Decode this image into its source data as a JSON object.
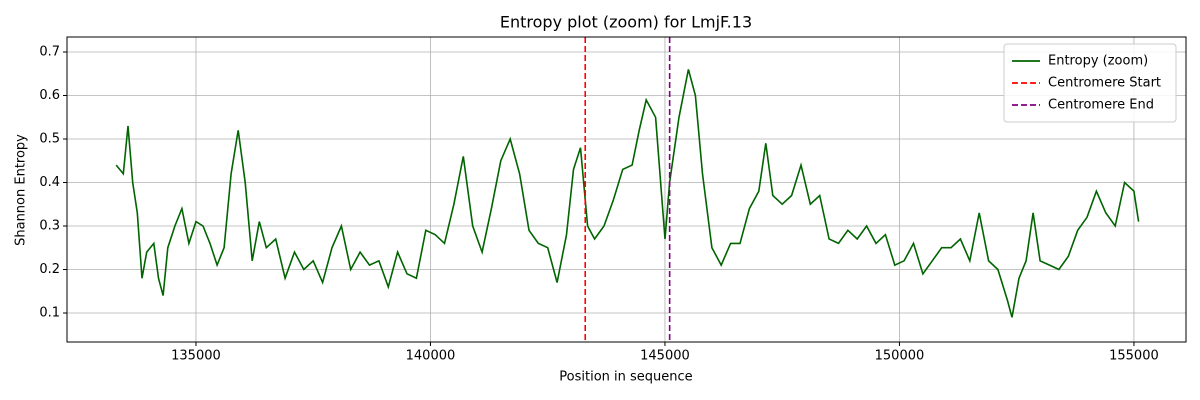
{
  "chart_data": {
    "type": "line",
    "title": "Entropy plot (zoom) for LmjF.13",
    "xlabel": "Position in sequence",
    "ylabel": "Shannon Entropy",
    "x": [
      133300,
      133450,
      133550,
      133650,
      133750,
      133850,
      133950,
      134100,
      134200,
      134300,
      134400,
      134550,
      134700,
      134850,
      135000,
      135150,
      135300,
      135450,
      135600,
      135750,
      135900,
      136050,
      136200,
      136350,
      136500,
      136700,
      136900,
      137100,
      137300,
      137500,
      137700,
      137900,
      138100,
      138300,
      138500,
      138700,
      138900,
      139100,
      139300,
      139500,
      139700,
      139900,
      140100,
      140300,
      140500,
      140700,
      140900,
      141100,
      141300,
      141500,
      141700,
      141900,
      142100,
      142300,
      142500,
      142700,
      142900,
      143050,
      143200,
      143350,
      143500,
      143700,
      143900,
      144100,
      144300,
      144450,
      144600,
      144800,
      145000,
      145100,
      145300,
      145500,
      145650,
      145800,
      146000,
      146200,
      146400,
      146600,
      146800,
      147000,
      147150,
      147300,
      147500,
      147700,
      147900,
      148100,
      148300,
      148500,
      148700,
      148900,
      149100,
      149300,
      149500,
      149700,
      149900,
      150100,
      150300,
      150500,
      150700,
      150900,
      151100,
      151300,
      151500,
      151700,
      151900,
      152100,
      152300,
      152400,
      152550,
      152700,
      152850,
      153000,
      153200,
      153400,
      153600,
      153800,
      154000,
      154200,
      154400,
      154600,
      154800,
      155000,
      155100
    ],
    "series": [
      {
        "name": "Entropy (zoom)",
        "color": "#006400",
        "values": [
          0.44,
          0.42,
          0.53,
          0.4,
          0.33,
          0.18,
          0.24,
          0.26,
          0.18,
          0.14,
          0.25,
          0.3,
          0.34,
          0.26,
          0.31,
          0.3,
          0.26,
          0.21,
          0.25,
          0.42,
          0.52,
          0.4,
          0.22,
          0.31,
          0.25,
          0.27,
          0.18,
          0.24,
          0.2,
          0.22,
          0.17,
          0.25,
          0.3,
          0.2,
          0.24,
          0.21,
          0.22,
          0.16,
          0.24,
          0.19,
          0.18,
          0.29,
          0.28,
          0.26,
          0.35,
          0.46,
          0.3,
          0.24,
          0.34,
          0.45,
          0.5,
          0.42,
          0.29,
          0.26,
          0.25,
          0.17,
          0.28,
          0.43,
          0.48,
          0.3,
          0.27,
          0.3,
          0.36,
          0.43,
          0.44,
          0.52,
          0.59,
          0.55,
          0.27,
          0.4,
          0.55,
          0.66,
          0.6,
          0.42,
          0.25,
          0.21,
          0.26,
          0.26,
          0.34,
          0.38,
          0.49,
          0.37,
          0.35,
          0.37,
          0.44,
          0.35,
          0.37,
          0.27,
          0.26,
          0.29,
          0.27,
          0.3,
          0.26,
          0.28,
          0.21,
          0.22,
          0.26,
          0.19,
          0.22,
          0.25,
          0.25,
          0.27,
          0.22,
          0.33,
          0.22,
          0.2,
          0.13,
          0.09,
          0.18,
          0.22,
          0.33,
          0.22,
          0.21,
          0.2,
          0.23,
          0.29,
          0.32,
          0.38,
          0.33,
          0.3,
          0.4,
          0.38,
          0.31
        ]
      }
    ],
    "vlines": [
      {
        "name": "Centromere Start",
        "color": "red",
        "x": 143300
      },
      {
        "name": "Centromere End",
        "color": "purple",
        "x": 145100
      }
    ],
    "xlim": [
      132250,
      156110
    ],
    "ylim": [
      0.0333,
      0.7345
    ],
    "xticks": [
      135000,
      140000,
      145000,
      150000,
      155000
    ],
    "yticks": [
      0.1,
      0.2,
      0.3,
      0.4,
      0.5,
      0.6,
      0.7
    ],
    "grid": true,
    "legend": "upper right"
  }
}
